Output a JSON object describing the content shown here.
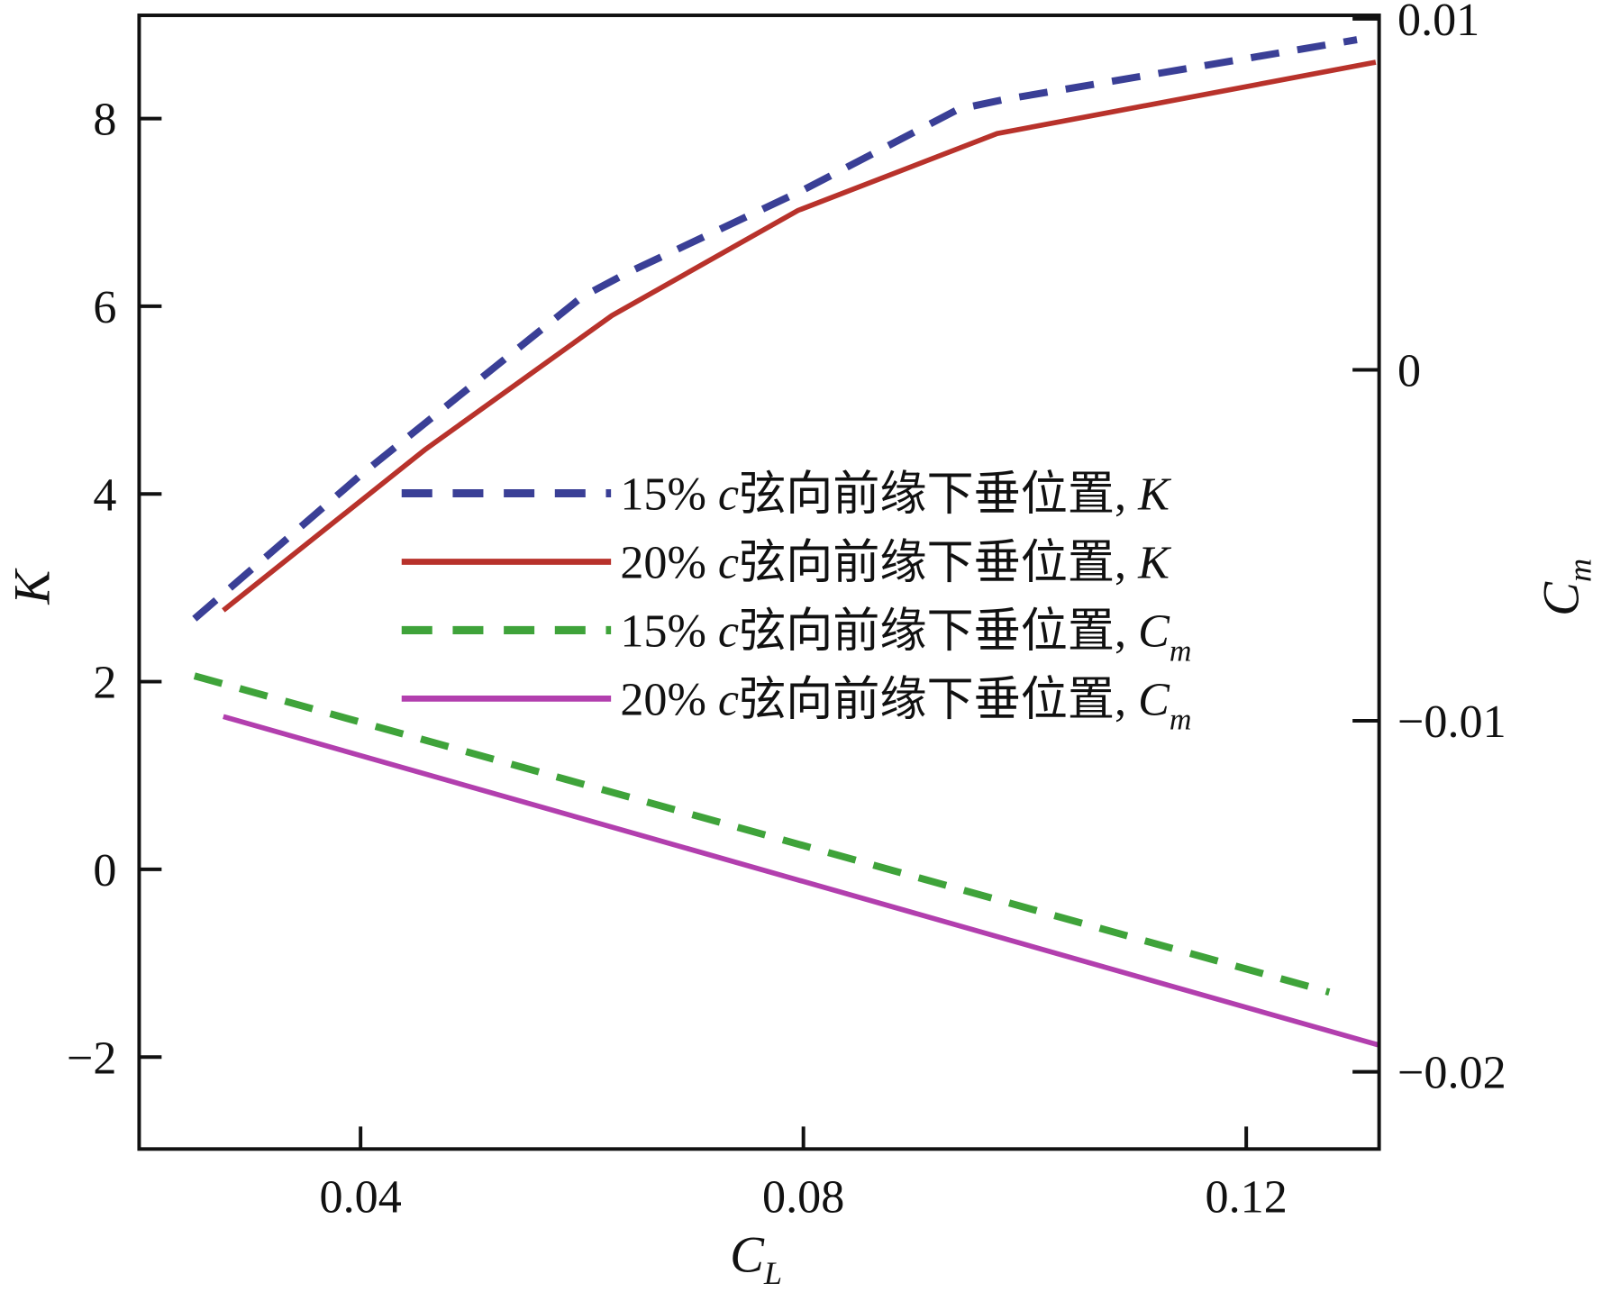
{
  "chart_data": {
    "type": "line",
    "title": "",
    "xlabel": "C",
    "xlabel_sub": "L",
    "ylabel": "K",
    "y2label": "C",
    "y2label_sub": "m",
    "xlim": [
      0.02,
      0.132
    ],
    "ylim": [
      -2.98,
      9.1
    ],
    "y2lim": [
      -0.0222,
      0.0101
    ],
    "xticks": [
      0.04,
      0.08,
      0.12
    ],
    "xtick_labels": [
      "0.04",
      "0.08",
      "0.12"
    ],
    "yticks": [
      8,
      6,
      4,
      2,
      0,
      -2
    ],
    "ytick_labels": [
      "8",
      "6",
      "4",
      "2",
      "0",
      "−2"
    ],
    "y2ticks": [
      0.01,
      0,
      -0.01,
      -0.02
    ],
    "y2tick_labels": [
      "0.01",
      "0",
      "−0.01",
      "−0.02"
    ],
    "grid": false,
    "legend_placement": "center",
    "series": [
      {
        "name": "15% c弦向前缘下垂位置, K",
        "pct": "15%",
        "c": "c",
        "text": "弦向前缘下垂位置,",
        "var": "K",
        "sub": "",
        "axis": "left",
        "color": "#3a3f96",
        "dash": true,
        "x": [
          0.025,
          0.04,
          0.06,
          0.064,
          0.08,
          0.094,
          0.098,
          0.13
        ],
        "y": [
          2.67,
          4.2,
          6.1,
          6.35,
          7.24,
          8.1,
          8.2,
          8.84
        ]
      },
      {
        "name": "20% c弦向前缘下垂位置, K",
        "pct": "20%",
        "c": "c",
        "text": "弦向前缘下垂位置,",
        "var": "K",
        "sub": "",
        "axis": "left",
        "color": "#b8322b",
        "dash": false,
        "x": [
          0.0276,
          0.0458,
          0.0627,
          0.0795,
          0.0975,
          0.1317
        ],
        "y": [
          2.76,
          4.47,
          5.9,
          7.02,
          7.84,
          8.6
        ]
      },
      {
        "name": "15% c弦向前缘下垂位置, Cm",
        "pct": "15%",
        "c": "c",
        "text": "弦向前缘下垂位置,",
        "var": "C",
        "sub": "m",
        "axis": "right",
        "color": "#3fa33a",
        "dash": true,
        "x": [
          0.025,
          0.1275
        ],
        "y": [
          -0.00872,
          -0.01773
        ]
      },
      {
        "name": "20% c弦向前缘下垂位置, Cm",
        "pct": "20%",
        "c": "c",
        "text": "弦向前缘下垂位置,",
        "var": "C",
        "sub": "m",
        "axis": "right",
        "color": "#b23fae",
        "dash": false,
        "x": [
          0.0276,
          0.132
        ],
        "y": [
          -0.00988,
          -0.01924
        ]
      }
    ]
  }
}
